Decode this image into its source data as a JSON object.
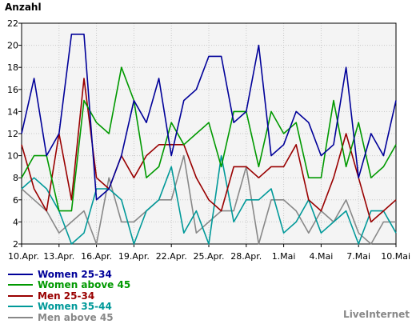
{
  "chart_data": {
    "type": "line",
    "ylabel": "Anzahl",
    "xlabel": "",
    "ylim": [
      2,
      22
    ],
    "yticks": [
      2,
      4,
      6,
      8,
      10,
      12,
      14,
      16,
      18,
      20,
      22
    ],
    "grid": true,
    "legend_position": "bottom-left",
    "x_tick_labels": [
      "10.Apr.",
      "13.Apr.",
      "16.Apr.",
      "19.Apr.",
      "22.Apr.",
      "25.Apr.",
      "28.Apr.",
      "1.Mai",
      "4.Mai",
      "7.Mai",
      "10.Mai"
    ],
    "x_tick_every": 3,
    "series": [
      {
        "name": "Women 25-34",
        "color": "#000099",
        "values": [
          12,
          17,
          10,
          12,
          21,
          21,
          6,
          7,
          10,
          15,
          13,
          17,
          10,
          15,
          16,
          19,
          19,
          13,
          14,
          20,
          10,
          11,
          14,
          13,
          10,
          11,
          18,
          8,
          12,
          10,
          15
        ]
      },
      {
        "name": "Women above 45",
        "color": "#009900",
        "values": [
          8,
          10,
          10,
          5,
          5,
          15,
          13,
          12,
          18,
          15,
          8,
          9,
          13,
          11,
          12,
          13,
          9,
          14,
          14,
          9,
          14,
          12,
          13,
          8,
          8,
          15,
          9,
          13,
          8,
          9,
          11
        ]
      },
      {
        "name": "Men 25-34",
        "color": "#990000",
        "values": [
          11,
          7,
          5,
          12,
          6,
          17,
          8,
          7,
          10,
          8,
          10,
          11,
          11,
          11,
          8,
          6,
          5,
          9,
          9,
          8,
          9,
          9,
          11,
          6,
          5,
          8,
          12,
          8,
          4,
          5,
          6
        ]
      },
      {
        "name": "Women 35-44",
        "color": "#009999",
        "values": [
          7,
          8,
          7,
          5,
          2,
          3,
          7,
          7,
          6,
          2,
          5,
          6,
          9,
          3,
          5,
          2,
          10,
          4,
          6,
          6,
          7,
          3,
          4,
          6,
          3,
          4,
          5,
          2,
          5,
          5,
          3
        ]
      },
      {
        "name": "Men above 45",
        "color": "#888888",
        "values": [
          7,
          6,
          5,
          3,
          4,
          5,
          2,
          8,
          4,
          4,
          5,
          6,
          6,
          10,
          3,
          4,
          5,
          5,
          9,
          2,
          6,
          6,
          5,
          3,
          5,
          4,
          6,
          3,
          2,
          4,
          4
        ]
      }
    ]
  },
  "footer": {
    "source": "LiveInternet"
  }
}
